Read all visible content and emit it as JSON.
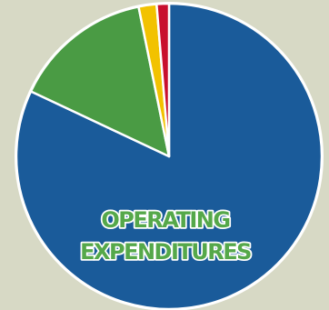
{
  "chart_data": {
    "type": "pie",
    "title": "",
    "slices": [
      {
        "value": 82.0,
        "color": "#1a5b9a"
      },
      {
        "value": 14.8,
        "color": "#4a9b44"
      },
      {
        "value": 1.9,
        "color": "#f2c200"
      },
      {
        "value": 1.3,
        "color": "#c8102e"
      }
    ],
    "annotations": [
      "OPERATING",
      "EXPENDITURES"
    ],
    "slice_border_color": "#ffffff"
  }
}
